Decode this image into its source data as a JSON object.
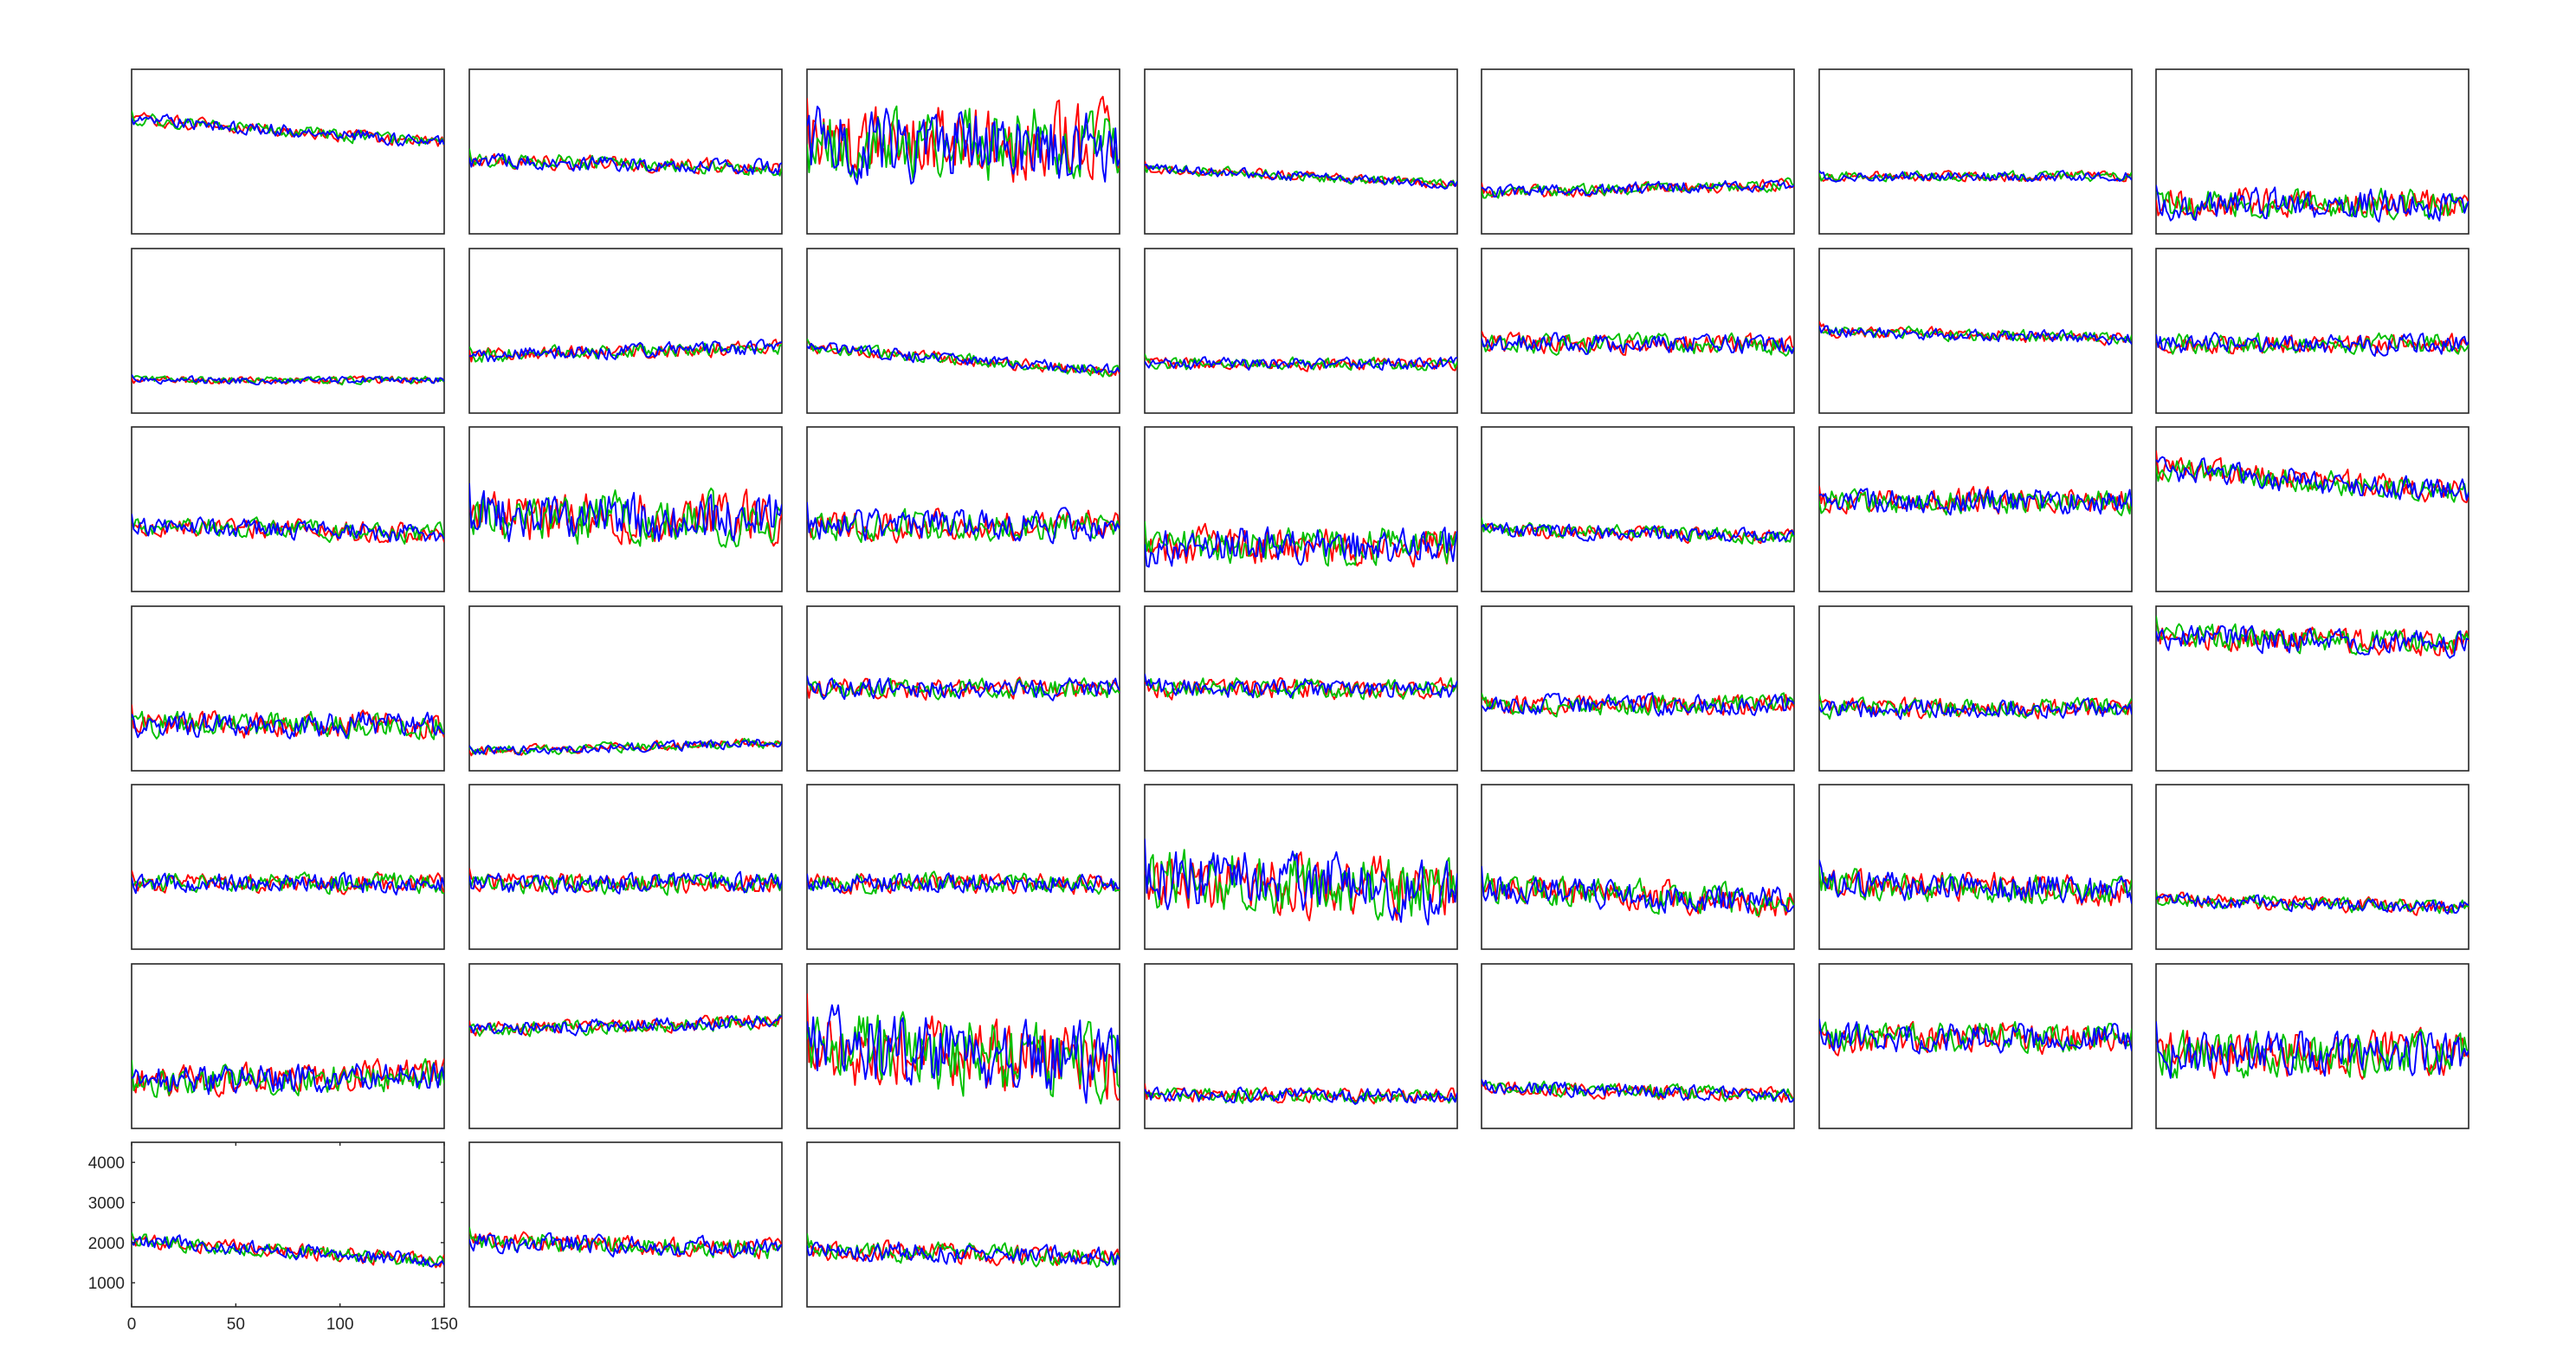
{
  "chart_data": {
    "type": "line",
    "layout": "small multiples",
    "grid": false,
    "legend": "none",
    "panel_count": 45,
    "series_colors": {
      "red": "#ff0000",
      "green": "#00c000",
      "blue": "#0000ff"
    },
    "series_draw_order": [
      "red",
      "green",
      "blue"
    ],
    "x": {
      "lim": [
        0,
        150
      ],
      "ticks": [
        0,
        50,
        100,
        150
      ],
      "tick_labels": [
        "0",
        "50",
        "100",
        "150"
      ]
    },
    "y": {
      "lim": [
        400,
        4500
      ],
      "ticks": [
        1000,
        2000,
        3000,
        4000
      ],
      "tick_labels": [
        "1000",
        "2000",
        "3000",
        "4000"
      ]
    },
    "labeled_panel": 42,
    "panels": [
      {
        "level": 0.7,
        "trend": -0.15,
        "amp": 0.05,
        "seed": 1
      },
      {
        "level": 0.45,
        "trend": -0.05,
        "amp": 0.06,
        "seed": 2
      },
      {
        "level": 0.55,
        "trend": 0.0,
        "amp": 0.3,
        "seed": 3
      },
      {
        "level": 0.4,
        "trend": -0.1,
        "amp": 0.04,
        "seed": 4
      },
      {
        "level": 0.25,
        "trend": 0.05,
        "amp": 0.05,
        "seed": 5
      },
      {
        "level": 0.35,
        "trend": 0.0,
        "amp": 0.04,
        "seed": 6
      },
      {
        "level": 0.18,
        "trend": 0.0,
        "amp": 0.12,
        "seed": 7
      },
      {
        "level": 0.2,
        "trend": 0.0,
        "amp": 0.03,
        "seed": 8
      },
      {
        "level": 0.35,
        "trend": 0.05,
        "amp": 0.06,
        "seed": 9
      },
      {
        "level": 0.4,
        "trend": -0.15,
        "amp": 0.05,
        "seed": 10
      },
      {
        "level": 0.3,
        "trend": 0.0,
        "amp": 0.05,
        "seed": 11
      },
      {
        "level": 0.42,
        "trend": 0.0,
        "amp": 0.08,
        "seed": 12
      },
      {
        "level": 0.5,
        "trend": -0.05,
        "amp": 0.05,
        "seed": 13
      },
      {
        "level": 0.42,
        "trend": 0.0,
        "amp": 0.08,
        "seed": 14
      },
      {
        "level": 0.4,
        "trend": -0.05,
        "amp": 0.08,
        "seed": 15
      },
      {
        "level": 0.45,
        "trend": 0.0,
        "amp": 0.2,
        "seed": 16
      },
      {
        "level": 0.4,
        "trend": 0.0,
        "amp": 0.12,
        "seed": 17
      },
      {
        "level": 0.28,
        "trend": 0.0,
        "amp": 0.15,
        "seed": 18
      },
      {
        "level": 0.38,
        "trend": -0.05,
        "amp": 0.06,
        "seed": 19
      },
      {
        "level": 0.55,
        "trend": 0.0,
        "amp": 0.1,
        "seed": 20
      },
      {
        "level": 0.75,
        "trend": -0.15,
        "amp": 0.1,
        "seed": 21
      },
      {
        "level": 0.28,
        "trend": 0.0,
        "amp": 0.1,
        "seed": 22
      },
      {
        "level": 0.12,
        "trend": 0.05,
        "amp": 0.04,
        "seed": 23
      },
      {
        "level": 0.5,
        "trend": 0.0,
        "amp": 0.08,
        "seed": 24
      },
      {
        "level": 0.5,
        "trend": 0.0,
        "amp": 0.08,
        "seed": 25
      },
      {
        "level": 0.4,
        "trend": 0.0,
        "amp": 0.08,
        "seed": 26
      },
      {
        "level": 0.38,
        "trend": 0.0,
        "amp": 0.08,
        "seed": 27
      },
      {
        "level": 0.82,
        "trend": -0.05,
        "amp": 0.1,
        "seed": 28
      },
      {
        "level": 0.4,
        "trend": 0.0,
        "amp": 0.08,
        "seed": 29
      },
      {
        "level": 0.4,
        "trend": 0.0,
        "amp": 0.08,
        "seed": 30
      },
      {
        "level": 0.4,
        "trend": 0.0,
        "amp": 0.08,
        "seed": 31
      },
      {
        "level": 0.45,
        "trend": -0.1,
        "amp": 0.25,
        "seed": 32
      },
      {
        "level": 0.38,
        "trend": -0.1,
        "amp": 0.12,
        "seed": 33
      },
      {
        "level": 0.4,
        "trend": -0.05,
        "amp": 0.12,
        "seed": 34
      },
      {
        "level": 0.3,
        "trend": -0.05,
        "amp": 0.06,
        "seed": 35
      },
      {
        "level": 0.28,
        "trend": 0.05,
        "amp": 0.12,
        "seed": 36
      },
      {
        "level": 0.6,
        "trend": 0.05,
        "amp": 0.06,
        "seed": 37
      },
      {
        "level": 0.5,
        "trend": -0.1,
        "amp": 0.3,
        "seed": 38
      },
      {
        "level": 0.2,
        "trend": 0.0,
        "amp": 0.06,
        "seed": 39
      },
      {
        "level": 0.25,
        "trend": -0.05,
        "amp": 0.06,
        "seed": 40
      },
      {
        "level": 0.55,
        "trend": 0.0,
        "amp": 0.12,
        "seed": 41
      },
      {
        "level": 0.45,
        "trend": 0.0,
        "amp": 0.18,
        "seed": 42
      },
      {
        "level": 0.4,
        "trend": -0.12,
        "amp": 0.06,
        "seed": 43
      },
      {
        "level": 0.4,
        "trend": -0.05,
        "amp": 0.08,
        "seed": 44
      },
      {
        "level": 0.35,
        "trend": -0.05,
        "amp": 0.08,
        "seed": 45
      }
    ]
  }
}
